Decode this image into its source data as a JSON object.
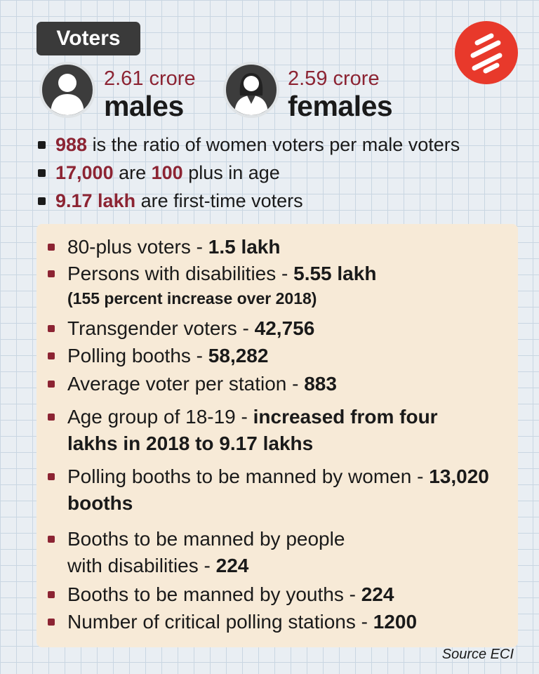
{
  "title": "Voters",
  "logo_icon": "indian-express-logo-icon",
  "stats": [
    {
      "value": "2.61 crore",
      "label": "males",
      "icon": "male-avatar-icon"
    },
    {
      "value": "2.59 crore",
      "label": "females",
      "icon": "female-avatar-icon"
    }
  ],
  "facts": [
    {
      "parts": [
        {
          "text": "988",
          "hl": true
        },
        {
          "text": " is the ratio of women voters per male voters"
        }
      ]
    },
    {
      "parts": [
        {
          "text": "17,000",
          "hl": true
        },
        {
          "text": " are "
        },
        {
          "text": "100",
          "hl": true
        },
        {
          "text": " plus in age"
        }
      ]
    },
    {
      "parts": [
        {
          "text": "9.17 lakh",
          "hl": true
        },
        {
          "text": " are first-time voters"
        }
      ]
    }
  ],
  "details": [
    {
      "label": "80-plus voters - ",
      "value": "1.5 lakh"
    },
    {
      "label": "Persons with disabilities - ",
      "value": "5.55 lakh",
      "note": "(155 percent increase over 2018)"
    },
    {
      "label": "Transgender voters - ",
      "value": "42,756"
    },
    {
      "label": "Polling booths - ",
      "value": "58,282"
    },
    {
      "label": "Average voter per station - ",
      "value": "883"
    },
    {
      "label": "Age group of 18-19 - ",
      "value": "increased from four lakhs in 2018 to 9.17 lakhs"
    },
    {
      "label": "Polling booths to be manned by women - ",
      "value": "13,020 booths"
    },
    {
      "label": "Booths to be manned by people with disabilities - ",
      "value": "224"
    },
    {
      "label": "Booths to be manned by youths - ",
      "value": "224"
    },
    {
      "label": "Number of critical polling stations - ",
      "value": "1200"
    }
  ],
  "source": "Source ECI",
  "colors": {
    "accent": "#8c2433",
    "card": "#f7ead7",
    "logo": "#e8392b",
    "pill": "#3a3a3a"
  }
}
